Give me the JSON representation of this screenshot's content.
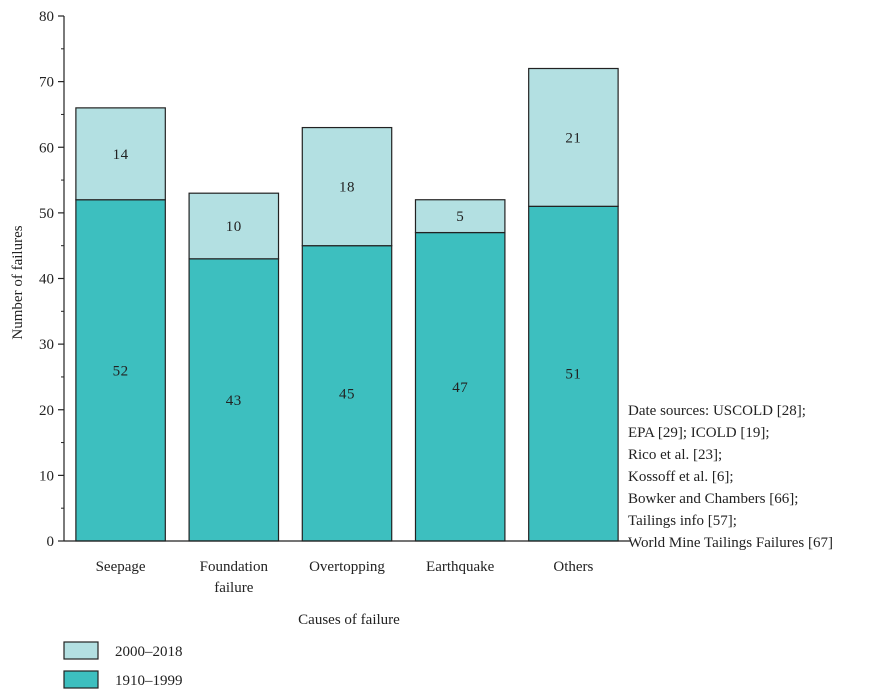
{
  "chart_data": {
    "type": "bar",
    "stacked": true,
    "xlabel": "Causes of failure",
    "ylabel": "Number of failures",
    "ylim": [
      0,
      80
    ],
    "yticks": [
      0,
      10,
      20,
      30,
      40,
      50,
      60,
      70,
      80
    ],
    "categories": [
      [
        "Seepage"
      ],
      [
        "Foundation",
        "failure"
      ],
      [
        "Overtopping"
      ],
      [
        "Earthquake"
      ],
      [
        "Others"
      ]
    ],
    "series": [
      {
        "name": "1910–1999",
        "color": "#3dbfbf",
        "values": [
          52,
          43,
          45,
          47,
          51
        ]
      },
      {
        "name": "2000–2018",
        "color": "#b3e0e2",
        "values": [
          14,
          10,
          18,
          5,
          21
        ]
      }
    ],
    "legend_position": "bottom-left",
    "grid": false,
    "source_note": [
      "Date sources: USCOLD [28];",
      "EPA [29]; ICOLD [19];",
      "Rico et al. [23];",
      "Kossoff et al. [6];",
      "Bowker and Chambers [66];",
      "Tailings info [57];",
      "World Mine Tailings Failures [67]"
    ]
  }
}
